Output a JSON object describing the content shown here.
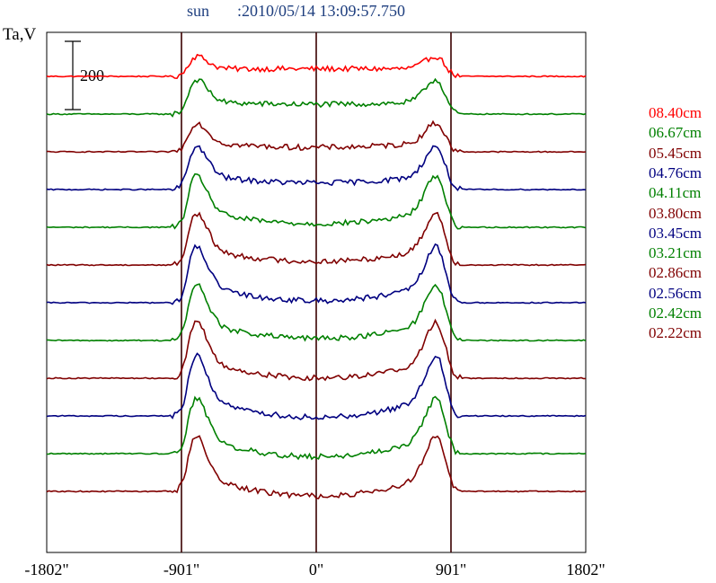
{
  "chart_data": {
    "type": "line",
    "title_source": "sun",
    "title_timestamp": ":2010/05/14 13:09:57.750",
    "ylabel": "Ta,V",
    "scale_bar_label": "200",
    "scale_bar_value": 200,
    "x_ticks": [
      "-1802\"",
      "-901\"",
      "0\"",
      "901\"",
      "1802\""
    ],
    "x_tick_values": [
      -1802,
      -901,
      0,
      901,
      1802
    ],
    "xlim": [
      -1802,
      1802
    ],
    "vertical_markers": [
      -901,
      0,
      901
    ],
    "grid": false,
    "legend_position": "right",
    "series": [
      {
        "name": "08.40cm",
        "color": "#ff0000",
        "limb_height": 40,
        "center_depth": 0
      },
      {
        "name": "06.67cm",
        "color": "#008000",
        "limb_height": 70,
        "center_depth": 10
      },
      {
        "name": "05.45cm",
        "color": "#800000",
        "limb_height": 60,
        "center_depth": 20
      },
      {
        "name": "04.76cm",
        "color": "#000080",
        "limb_height": 90,
        "center_depth": 30
      },
      {
        "name": "04.11cm",
        "color": "#008000",
        "limb_height": 110,
        "center_depth": 50
      },
      {
        "name": "03.80cm",
        "color": "#800000",
        "limb_height": 110,
        "center_depth": 50
      },
      {
        "name": "03.45cm",
        "color": "#000080",
        "limb_height": 120,
        "center_depth": 60
      },
      {
        "name": "03.21cm",
        "color": "#008000",
        "limb_height": 120,
        "center_depth": 60
      },
      {
        "name": "02.86cm",
        "color": "#800000",
        "limb_height": 120,
        "center_depth": 65
      },
      {
        "name": "02.56cm",
        "color": "#000080",
        "limb_height": 130,
        "center_depth": 75
      },
      {
        "name": "02.42cm",
        "color": "#008000",
        "limb_height": 120,
        "center_depth": 75
      },
      {
        "name": "02.22cm",
        "color": "#800000",
        "limb_height": 120,
        "center_depth": 80
      }
    ]
  }
}
